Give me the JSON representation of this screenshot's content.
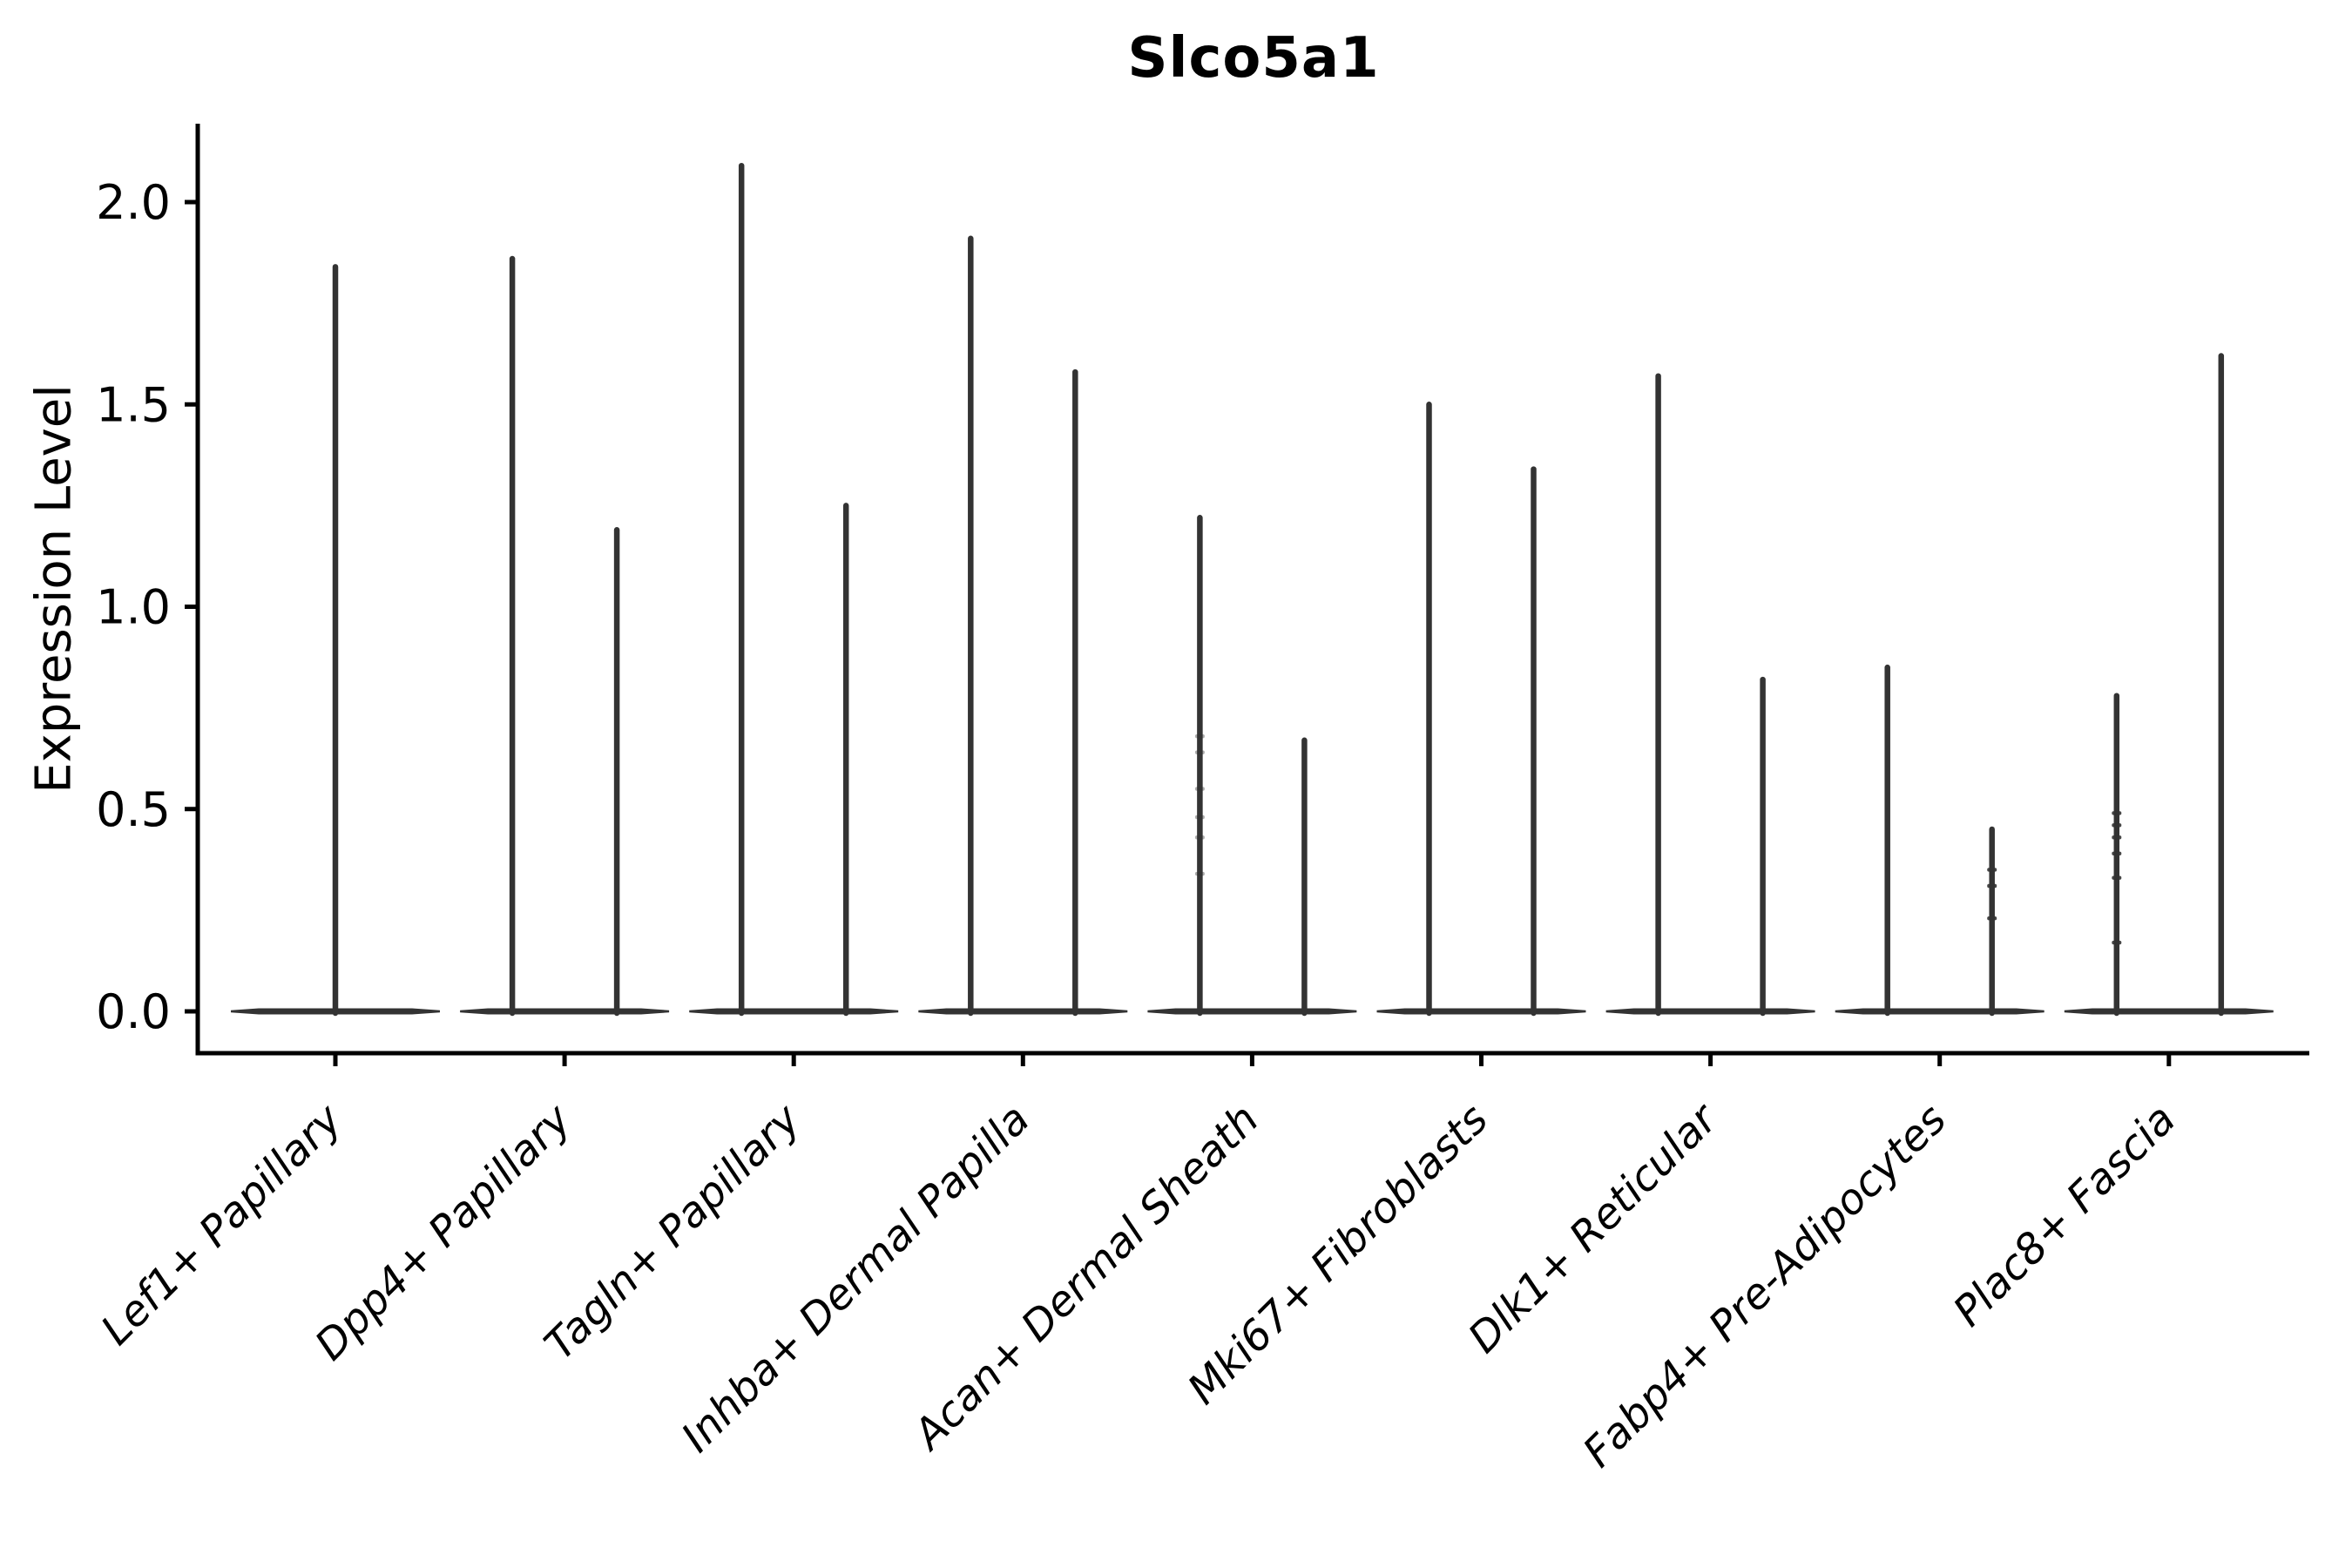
{
  "figure": {
    "title": "Slco5a1",
    "y_axis_label": "Expression Level"
  },
  "chart_data": {
    "type": "violin",
    "title": "Slco5a1",
    "xlabel": "",
    "ylabel": "Expression Level",
    "ylim": [
      0,
      2.2
    ],
    "yticks": [
      0.0,
      0.5,
      1.0,
      1.5,
      2.0
    ],
    "ytick_labels": [
      "0.0",
      "0.5",
      "1.0",
      "1.5",
      "2.0"
    ],
    "categories": [
      "Lef1+ Papillary",
      "Dpp4+ Papillary",
      "Tagln+ Papillary",
      "Inhba+ Dermal Papilla",
      "Acan+ Dermal Sheath",
      "Mki67+ Fibroblasts",
      "Dlk1+ Reticular",
      "Fabp4+ Pre-Adipocytes",
      "Plac8+ Fascia"
    ],
    "series": [
      {
        "category": "Lef1+ Papillary",
        "violins": [
          {
            "group": "center",
            "max": 1.84,
            "points": []
          }
        ]
      },
      {
        "category": "Dpp4+ Papillary",
        "violins": [
          {
            "group": "left",
            "max": 1.86,
            "points": []
          },
          {
            "group": "right",
            "max": 1.19,
            "points": []
          }
        ]
      },
      {
        "category": "Tagln+ Papillary",
        "violins": [
          {
            "group": "left",
            "max": 2.09,
            "points": []
          },
          {
            "group": "right",
            "max": 1.25,
            "points": []
          }
        ]
      },
      {
        "category": "Inhba+ Dermal Papilla",
        "violins": [
          {
            "group": "left",
            "max": 1.91,
            "points": []
          },
          {
            "group": "right",
            "max": 1.58,
            "points": []
          }
        ]
      },
      {
        "category": "Acan+ Dermal Sheath",
        "violins": [
          {
            "group": "left",
            "max": 1.22,
            "points": [
              0.68,
              0.64,
              0.55,
              0.48,
              0.43,
              0.34
            ],
            "points_faint": true
          },
          {
            "group": "right",
            "max": 0.67,
            "points": []
          }
        ]
      },
      {
        "category": "Mki67+ Fibroblasts",
        "violins": [
          {
            "group": "left",
            "max": 1.5,
            "points": []
          },
          {
            "group": "right",
            "max": 1.34,
            "points": []
          }
        ]
      },
      {
        "category": "Dlk1+ Reticular",
        "violins": [
          {
            "group": "left",
            "max": 1.57,
            "points": []
          },
          {
            "group": "right",
            "max": 0.82,
            "points": []
          }
        ]
      },
      {
        "category": "Fabp4+ Pre-Adipocytes",
        "violins": [
          {
            "group": "left",
            "max": 0.85,
            "points": []
          },
          {
            "group": "right",
            "max": 0.45,
            "points": [
              0.35,
              0.31,
              0.23
            ]
          }
        ]
      },
      {
        "category": "Plac8+ Fascia",
        "violins": [
          {
            "group": "left",
            "max": 0.78,
            "points": [
              0.49,
              0.46,
              0.43,
              0.39,
              0.33,
              0.17
            ]
          },
          {
            "group": "right",
            "max": 1.62,
            "points": []
          }
        ]
      }
    ],
    "layout_hints": {
      "grid": false,
      "legend": "none",
      "x_tick_rotation": 45,
      "x_tick_style": "italic",
      "spines": [
        "left",
        "bottom"
      ]
    },
    "colors": {
      "violin": "#333333",
      "axis": "#000000",
      "text": "#000000",
      "background": "#ffffff"
    }
  }
}
